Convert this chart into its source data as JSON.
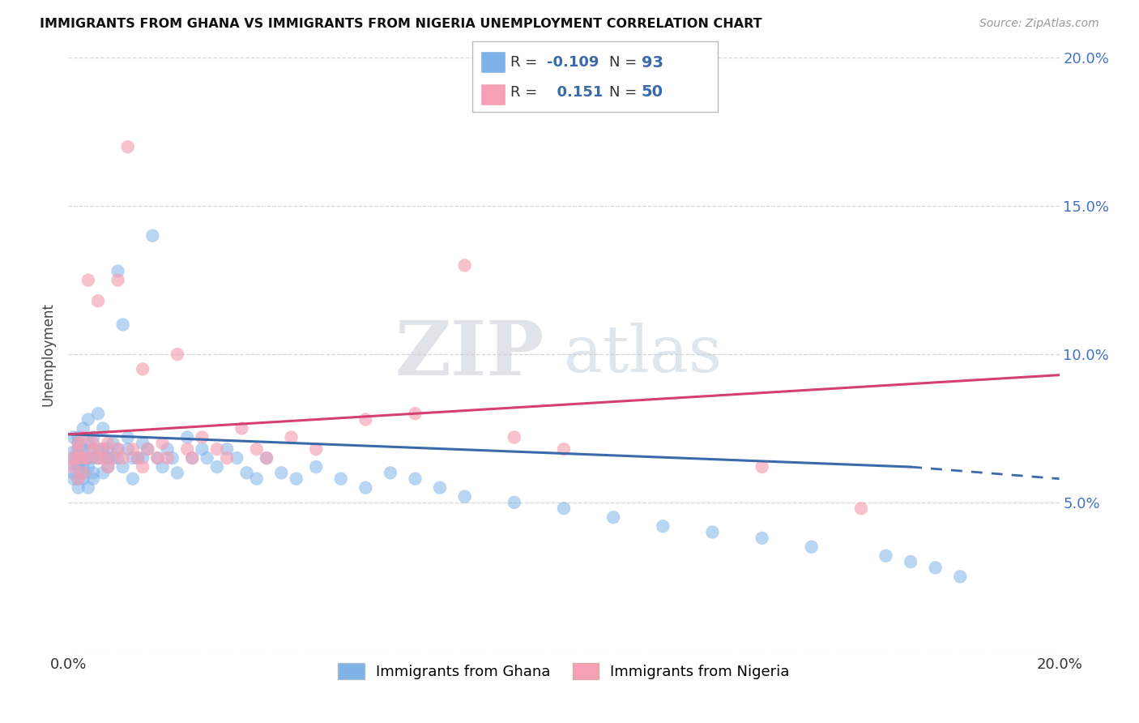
{
  "title": "IMMIGRANTS FROM GHANA VS IMMIGRANTS FROM NIGERIA UNEMPLOYMENT CORRELATION CHART",
  "source": "Source: ZipAtlas.com",
  "ylabel": "Unemployment",
  "xlim": [
    0.0,
    0.2
  ],
  "ylim": [
    0.0,
    0.2
  ],
  "background_color": "#ffffff",
  "ghana_color": "#7fb3e8",
  "nigeria_color": "#f5a0b5",
  "ghana_line_color": "#3a6aaa",
  "nigeria_line_color": "#d44070",
  "ghana_R": -0.109,
  "ghana_N": 93,
  "nigeria_R": 0.151,
  "nigeria_N": 50,
  "ghana_label": "Immigrants from Ghana",
  "nigeria_label": "Immigrants from Nigeria",
  "ghana_x": [
    0.001,
    0.001,
    0.001,
    0.001,
    0.001,
    0.001,
    0.002,
    0.002,
    0.002,
    0.002,
    0.002,
    0.002,
    0.002,
    0.002,
    0.002,
    0.003,
    0.003,
    0.003,
    0.003,
    0.003,
    0.003,
    0.003,
    0.004,
    0.004,
    0.004,
    0.004,
    0.004,
    0.005,
    0.005,
    0.005,
    0.005,
    0.005,
    0.006,
    0.006,
    0.006,
    0.007,
    0.007,
    0.007,
    0.007,
    0.008,
    0.008,
    0.008,
    0.009,
    0.009,
    0.01,
    0.01,
    0.01,
    0.011,
    0.011,
    0.012,
    0.012,
    0.013,
    0.013,
    0.014,
    0.015,
    0.015,
    0.016,
    0.017,
    0.018,
    0.019,
    0.02,
    0.021,
    0.022,
    0.024,
    0.025,
    0.027,
    0.028,
    0.03,
    0.032,
    0.034,
    0.036,
    0.038,
    0.04,
    0.043,
    0.046,
    0.05,
    0.055,
    0.06,
    0.065,
    0.07,
    0.075,
    0.08,
    0.09,
    0.1,
    0.11,
    0.12,
    0.13,
    0.14,
    0.15,
    0.165,
    0.17,
    0.175,
    0.18
  ],
  "ghana_y": [
    0.063,
    0.065,
    0.067,
    0.06,
    0.058,
    0.072,
    0.068,
    0.065,
    0.062,
    0.07,
    0.063,
    0.058,
    0.055,
    0.072,
    0.065,
    0.065,
    0.068,
    0.06,
    0.075,
    0.058,
    0.062,
    0.068,
    0.065,
    0.07,
    0.055,
    0.062,
    0.078,
    0.065,
    0.068,
    0.06,
    0.072,
    0.058,
    0.068,
    0.065,
    0.08,
    0.065,
    0.068,
    0.06,
    0.075,
    0.065,
    0.068,
    0.062,
    0.07,
    0.065,
    0.128,
    0.068,
    0.065,
    0.11,
    0.062,
    0.072,
    0.068,
    0.065,
    0.058,
    0.065,
    0.07,
    0.065,
    0.068,
    0.14,
    0.065,
    0.062,
    0.068,
    0.065,
    0.06,
    0.072,
    0.065,
    0.068,
    0.065,
    0.062,
    0.068,
    0.065,
    0.06,
    0.058,
    0.065,
    0.06,
    0.058,
    0.062,
    0.058,
    0.055,
    0.06,
    0.058,
    0.055,
    0.052,
    0.05,
    0.048,
    0.045,
    0.042,
    0.04,
    0.038,
    0.035,
    0.032,
    0.03,
    0.028,
    0.025
  ],
  "nigeria_x": [
    0.001,
    0.001,
    0.002,
    0.002,
    0.002,
    0.002,
    0.003,
    0.003,
    0.003,
    0.004,
    0.004,
    0.005,
    0.005,
    0.006,
    0.006,
    0.007,
    0.007,
    0.008,
    0.008,
    0.009,
    0.01,
    0.01,
    0.011,
    0.012,
    0.013,
    0.014,
    0.015,
    0.015,
    0.016,
    0.018,
    0.019,
    0.02,
    0.022,
    0.024,
    0.025,
    0.027,
    0.03,
    0.032,
    0.035,
    0.038,
    0.04,
    0.045,
    0.05,
    0.06,
    0.07,
    0.08,
    0.09,
    0.1,
    0.14,
    0.16
  ],
  "nigeria_y": [
    0.065,
    0.062,
    0.068,
    0.065,
    0.07,
    0.058,
    0.065,
    0.072,
    0.06,
    0.065,
    0.125,
    0.068,
    0.07,
    0.065,
    0.118,
    0.068,
    0.065,
    0.07,
    0.062,
    0.065,
    0.068,
    0.125,
    0.065,
    0.17,
    0.068,
    0.065,
    0.062,
    0.095,
    0.068,
    0.065,
    0.07,
    0.065,
    0.1,
    0.068,
    0.065,
    0.072,
    0.068,
    0.065,
    0.075,
    0.068,
    0.065,
    0.072,
    0.068,
    0.078,
    0.08,
    0.13,
    0.072,
    0.068,
    0.062,
    0.048
  ]
}
